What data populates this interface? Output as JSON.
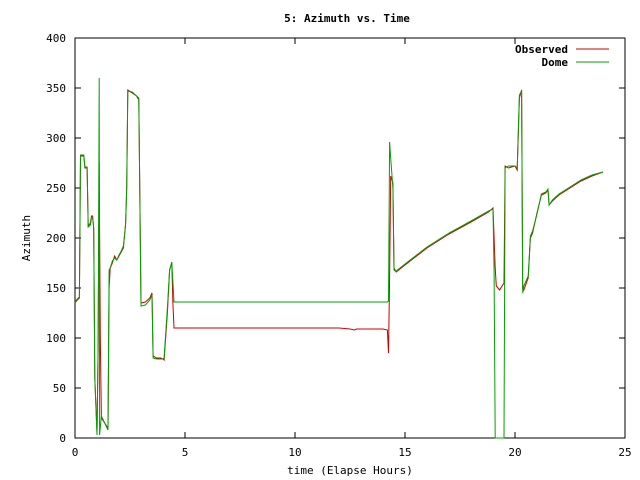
{
  "chart_data": {
    "type": "line",
    "title": "5: Azimuth vs. Time",
    "xlabel": "time (Elapse Hours)",
    "ylabel": "Azimuth",
    "xlim": [
      0,
      25
    ],
    "ylim": [
      0,
      400
    ],
    "xticks": [
      "0",
      "5",
      "10",
      "15",
      "20",
      "25"
    ],
    "yticks": [
      "0",
      "50",
      "100",
      "150",
      "200",
      "250",
      "300",
      "350",
      "400"
    ],
    "grid": false,
    "legend_position": "top-right",
    "series": [
      {
        "name": "Observed",
        "color": "#cc0000",
        "points": [
          [
            0,
            135
          ],
          [
            0.1,
            138
          ],
          [
            0.2,
            140
          ],
          [
            0.25,
            282
          ],
          [
            0.4,
            282
          ],
          [
            0.45,
            270
          ],
          [
            0.55,
            270
          ],
          [
            0.6,
            212
          ],
          [
            0.7,
            215
          ],
          [
            0.75,
            222
          ],
          [
            0.8,
            222
          ],
          [
            0.85,
            210
          ],
          [
            0.9,
            60
          ],
          [
            1.0,
            5
          ],
          [
            1.05,
            90
          ],
          [
            1.1,
            275
          ],
          [
            1.15,
            100
          ],
          [
            1.2,
            20
          ],
          [
            1.35,
            15
          ],
          [
            1.5,
            10
          ],
          [
            1.55,
            150
          ],
          [
            1.6,
            170
          ],
          [
            1.7,
            175
          ],
          [
            1.8,
            182
          ],
          [
            1.9,
            178
          ],
          [
            2.0,
            182
          ],
          [
            2.1,
            186
          ],
          [
            2.2,
            190
          ],
          [
            2.3,
            215
          ],
          [
            2.35,
            250
          ],
          [
            2.4,
            348
          ],
          [
            2.6,
            345
          ],
          [
            2.8,
            342
          ],
          [
            2.9,
            338
          ],
          [
            3.0,
            135
          ],
          [
            3.2,
            136
          ],
          [
            3.4,
            140
          ],
          [
            3.5,
            145
          ],
          [
            3.55,
            82
          ],
          [
            3.7,
            80
          ],
          [
            3.9,
            80
          ],
          [
            4.0,
            79
          ],
          [
            4.05,
            78
          ],
          [
            4.2,
            125
          ],
          [
            4.3,
            168
          ],
          [
            4.4,
            175
          ],
          [
            4.45,
            135
          ],
          [
            4.5,
            110
          ],
          [
            6.0,
            110
          ],
          [
            8.0,
            110
          ],
          [
            10.0,
            110
          ],
          [
            12.0,
            110
          ],
          [
            12.5,
            109
          ],
          [
            12.7,
            108
          ],
          [
            12.8,
            109
          ],
          [
            14.0,
            109
          ],
          [
            14.2,
            108
          ],
          [
            14.25,
            85
          ],
          [
            14.3,
            160
          ],
          [
            14.35,
            262
          ],
          [
            14.45,
            255
          ],
          [
            14.5,
            170
          ],
          [
            14.55,
            168
          ],
          [
            14.6,
            166
          ],
          [
            15.0,
            173
          ],
          [
            16.0,
            190
          ],
          [
            17.0,
            204
          ],
          [
            18.0,
            216
          ],
          [
            18.8,
            226
          ],
          [
            19.0,
            230
          ],
          [
            19.05,
            200
          ],
          [
            19.1,
            170
          ],
          [
            19.15,
            152
          ],
          [
            19.3,
            148
          ],
          [
            19.5,
            155
          ],
          [
            19.55,
            272
          ],
          [
            19.7,
            270
          ],
          [
            20.0,
            272
          ],
          [
            20.1,
            268
          ],
          [
            20.2,
            340
          ],
          [
            20.3,
            348
          ],
          [
            20.35,
            150
          ],
          [
            20.4,
            148
          ],
          [
            20.6,
            160
          ],
          [
            20.7,
            200
          ],
          [
            20.8,
            205
          ],
          [
            21.0,
            225
          ],
          [
            21.2,
            243
          ],
          [
            21.4,
            245
          ],
          [
            21.5,
            248
          ],
          [
            21.55,
            233
          ],
          [
            21.7,
            237
          ],
          [
            22.0,
            243
          ],
          [
            22.5,
            250
          ],
          [
            23.0,
            257
          ],
          [
            23.5,
            262
          ],
          [
            24.0,
            266
          ]
        ]
      },
      {
        "name": "Dome",
        "color": "#00a000",
        "points": [
          [
            0,
            136
          ],
          [
            0.1,
            139
          ],
          [
            0.2,
            141
          ],
          [
            0.25,
            283
          ],
          [
            0.4,
            283
          ],
          [
            0.45,
            271
          ],
          [
            0.55,
            271
          ],
          [
            0.6,
            211
          ],
          [
            0.7,
            213
          ],
          [
            0.75,
            220
          ],
          [
            0.8,
            220
          ],
          [
            0.85,
            210
          ],
          [
            0.9,
            60
          ],
          [
            1.0,
            3
          ],
          [
            1.05,
            85
          ],
          [
            1.1,
            360
          ],
          [
            1.12,
            3
          ],
          [
            1.2,
            22
          ],
          [
            1.35,
            15
          ],
          [
            1.5,
            8
          ],
          [
            1.55,
            168
          ],
          [
            1.6,
            170
          ],
          [
            1.7,
            177
          ],
          [
            1.8,
            180
          ],
          [
            1.9,
            178
          ],
          [
            2.0,
            183
          ],
          [
            2.1,
            187
          ],
          [
            2.2,
            192
          ],
          [
            2.3,
            213
          ],
          [
            2.35,
            248
          ],
          [
            2.4,
            347
          ],
          [
            2.6,
            346
          ],
          [
            2.8,
            342
          ],
          [
            2.9,
            340
          ],
          [
            3.0,
            132
          ],
          [
            3.2,
            133
          ],
          [
            3.4,
            138
          ],
          [
            3.5,
            143
          ],
          [
            3.55,
            80
          ],
          [
            3.7,
            79
          ],
          [
            3.9,
            79
          ],
          [
            4.0,
            79
          ],
          [
            4.05,
            80
          ],
          [
            4.2,
            130
          ],
          [
            4.3,
            168
          ],
          [
            4.4,
            176
          ],
          [
            4.5,
            136
          ],
          [
            6.0,
            136
          ],
          [
            8.0,
            136
          ],
          [
            10.0,
            136
          ],
          [
            12.0,
            136
          ],
          [
            14.0,
            136
          ],
          [
            14.2,
            136
          ],
          [
            14.25,
            137
          ],
          [
            14.3,
            296
          ],
          [
            14.35,
            280
          ],
          [
            14.45,
            250
          ],
          [
            14.5,
            168
          ],
          [
            14.55,
            167
          ],
          [
            14.6,
            167
          ],
          [
            15.0,
            174
          ],
          [
            16.0,
            191
          ],
          [
            17.0,
            205
          ],
          [
            18.0,
            217
          ],
          [
            18.8,
            227
          ],
          [
            19.0,
            229
          ],
          [
            19.05,
            165
          ],
          [
            19.1,
            0
          ],
          [
            19.5,
            0
          ],
          [
            19.55,
            270
          ],
          [
            19.7,
            272
          ],
          [
            20.0,
            272
          ],
          [
            20.1,
            270
          ],
          [
            20.2,
            343
          ],
          [
            20.3,
            347
          ],
          [
            20.35,
            145
          ],
          [
            20.4,
            152
          ],
          [
            20.6,
            162
          ],
          [
            20.7,
            202
          ],
          [
            20.8,
            207
          ],
          [
            21.0,
            224
          ],
          [
            21.2,
            244
          ],
          [
            21.4,
            246
          ],
          [
            21.5,
            249
          ],
          [
            21.55,
            233
          ],
          [
            21.7,
            238
          ],
          [
            22.0,
            244
          ],
          [
            22.5,
            251
          ],
          [
            23.0,
            258
          ],
          [
            23.5,
            263
          ],
          [
            24.0,
            266
          ]
        ]
      }
    ]
  }
}
